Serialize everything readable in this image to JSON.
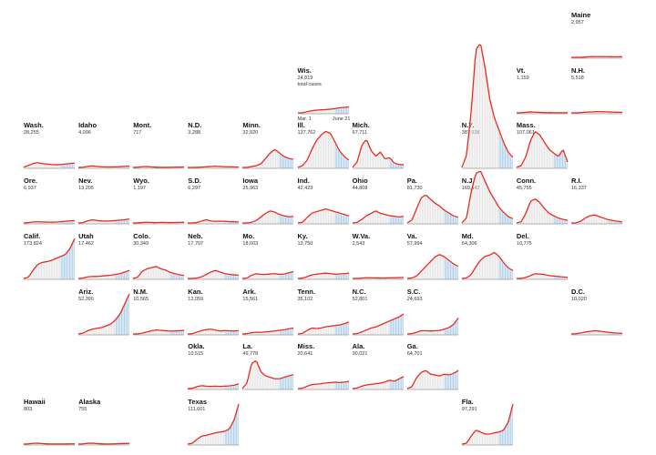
{
  "colors": {
    "line": "#e8281e",
    "bar": "#a9cce8",
    "bar_recent": "#8ec0e4",
    "bar_old": "#e4e4e4",
    "axis": "#9a9a9a"
  },
  "chart_data": {
    "type": "line",
    "subtype": "small-multiples tile map of daily new cases with 7-day average line",
    "x_range": [
      "Mar. 1",
      "June 21"
    ],
    "key_note": "total cases",
    "states": [
      {
        "name": "Maine",
        "total": "2,957",
        "row": 0,
        "col": 10,
        "shape": [
          0,
          0,
          0,
          0.3,
          0.5,
          0.6,
          0.55,
          0.6,
          0.55,
          0.5,
          0.45,
          0.45
        ],
        "peak": 0.03
      },
      {
        "name": "Wis.",
        "total": "24,819",
        "row": 1,
        "col": 5,
        "shape": [
          0,
          0,
          0.2,
          0.35,
          0.45,
          0.5,
          0.55,
          0.6,
          0.7,
          0.85,
          0.9,
          1
        ],
        "peak": 0.15,
        "note": "total cases",
        "ticks": [
          "Mar. 1",
          "June 21"
        ]
      },
      {
        "name": "Vt.",
        "total": "1,159",
        "row": 1,
        "col": 9,
        "shape": [
          0,
          0.1,
          0.6,
          1,
          0.7,
          0.5,
          0.3,
          0.2,
          0.15,
          0.1,
          0.1,
          0.1
        ],
        "peak": 0.02
      },
      {
        "name": "N.H.",
        "total": "5,518",
        "row": 1,
        "col": 10,
        "shape": [
          0,
          0,
          0.2,
          0.5,
          0.7,
          0.9,
          1,
          0.9,
          0.8,
          0.6,
          0.5,
          0.4
        ],
        "peak": 0.03
      },
      {
        "name": "Wash.",
        "total": "28,255",
        "row": 2,
        "col": 0,
        "shape": [
          0.05,
          0.4,
          0.8,
          1,
          0.8,
          0.7,
          0.6,
          0.55,
          0.6,
          0.7,
          0.8,
          0.9
        ],
        "peak": 0.12
      },
      {
        "name": "Idaho",
        "total": "4,006",
        "row": 2,
        "col": 1,
        "shape": [
          0,
          0.1,
          0.6,
          1,
          0.6,
          0.4,
          0.3,
          0.3,
          0.35,
          0.5,
          0.7,
          0.9
        ],
        "peak": 0.04
      },
      {
        "name": "Mont.",
        "total": "717",
        "row": 2,
        "col": 2,
        "shape": [
          0,
          0.2,
          0.8,
          1,
          0.5,
          0.2,
          0.1,
          0.1,
          0.2,
          0.3,
          0.4,
          0.5
        ],
        "peak": 0.01
      },
      {
        "name": "N.D.",
        "total": "3,288",
        "row": 2,
        "col": 3,
        "shape": [
          0,
          0,
          0.1,
          0.3,
          0.5,
          0.8,
          1,
          0.8,
          0.6,
          0.5,
          0.4,
          0.4
        ],
        "peak": 0.03
      },
      {
        "name": "Minn.",
        "total": "32,920",
        "row": 2,
        "col": 4,
        "shape": [
          0,
          0,
          0.05,
          0.1,
          0.2,
          0.5,
          0.8,
          1,
          0.8,
          0.6,
          0.5,
          0.45
        ],
        "peak": 0.45
      },
      {
        "name": "Ill.",
        "total": "137,762",
        "row": 2,
        "col": 5,
        "shape": [
          0,
          0.05,
          0.2,
          0.5,
          0.75,
          0.9,
          1,
          0.95,
          0.7,
          0.45,
          0.3,
          0.2
        ],
        "peak": 0.9
      },
      {
        "name": "Mich.",
        "total": "67,711",
        "row": 2,
        "col": 6,
        "shape": [
          0,
          0.2,
          0.8,
          1,
          0.6,
          0.4,
          0.55,
          0.3,
          0.35,
          0.15,
          0.1,
          0.1
        ],
        "peak": 0.7
      },
      {
        "name": "N.Y.",
        "total": "387,936",
        "row": 2,
        "col": 8,
        "shape": [
          0,
          0.1,
          0.45,
          0.95,
          1,
          0.8,
          0.55,
          0.4,
          0.3,
          0.2,
          0.12,
          0.08
        ],
        "peak": 3.1
      },
      {
        "name": "Mass.",
        "total": "107,061",
        "row": 2,
        "col": 9,
        "shape": [
          0,
          0.05,
          0.3,
          0.75,
          1,
          0.9,
          0.7,
          0.5,
          0.4,
          0.3,
          0.5,
          0.15
        ],
        "peak": 0.9
      },
      {
        "name": "Ore.",
        "total": "6,937",
        "row": 3,
        "col": 0,
        "shape": [
          0,
          0.1,
          0.4,
          0.5,
          0.4,
          0.35,
          0.3,
          0.35,
          0.5,
          0.7,
          0.9,
          1
        ],
        "peak": 0.06
      },
      {
        "name": "Nev.",
        "total": "13,205",
        "row": 3,
        "col": 1,
        "shape": [
          0,
          0.1,
          0.5,
          0.8,
          0.6,
          0.5,
          0.45,
          0.5,
          0.6,
          0.7,
          0.8,
          1
        ],
        "peak": 0.1
      },
      {
        "name": "Wyo.",
        "total": "1,197",
        "row": 3,
        "col": 2,
        "shape": [
          0,
          0.1,
          0.5,
          0.8,
          0.5,
          0.4,
          0.6,
          0.5,
          0.4,
          0.5,
          0.6,
          0.7
        ],
        "peak": 0.02
      },
      {
        "name": "S.D.",
        "total": "6,297",
        "row": 3,
        "col": 3,
        "shape": [
          0,
          0,
          0.1,
          0.6,
          1,
          0.6,
          0.5,
          0.55,
          0.5,
          0.4,
          0.35,
          0.3
        ],
        "peak": 0.08
      },
      {
        "name": "Iowa",
        "total": "25,963",
        "row": 3,
        "col": 4,
        "shape": [
          0,
          0,
          0.05,
          0.2,
          0.5,
          0.8,
          1,
          0.9,
          0.7,
          0.6,
          0.5,
          0.55
        ],
        "peak": 0.3
      },
      {
        "name": "Ind.",
        "total": "42,423",
        "row": 3,
        "col": 5,
        "shape": [
          0,
          0.05,
          0.4,
          0.7,
          0.8,
          0.9,
          1,
          0.9,
          0.8,
          0.7,
          0.6,
          0.5
        ],
        "peak": 0.35
      },
      {
        "name": "Ohio",
        "total": "44,808",
        "row": 3,
        "col": 6,
        "shape": [
          0,
          0.05,
          0.3,
          0.6,
          0.8,
          1,
          0.8,
          0.7,
          0.6,
          0.55,
          0.5,
          0.55
        ],
        "peak": 0.3
      },
      {
        "name": "Pa.",
        "total": "81,730",
        "row": 3,
        "col": 7,
        "shape": [
          0,
          0.1,
          0.5,
          0.9,
          1,
          0.85,
          0.7,
          0.6,
          0.45,
          0.35,
          0.25,
          0.2
        ],
        "peak": 0.7
      },
      {
        "name": "N.J.",
        "total": "169,142",
        "row": 3,
        "col": 8,
        "shape": [
          0,
          0.1,
          0.6,
          0.95,
          1,
          0.8,
          0.6,
          0.45,
          0.3,
          0.2,
          0.12,
          0.08
        ],
        "peak": 1.3
      },
      {
        "name": "Conn.",
        "total": "45,755",
        "row": 3,
        "col": 9,
        "shape": [
          0,
          0.05,
          0.4,
          0.9,
          1,
          0.85,
          0.6,
          0.4,
          0.3,
          0.2,
          0.15,
          0.1
        ],
        "peak": 0.6
      },
      {
        "name": "R.I.",
        "total": "16,337",
        "row": 3,
        "col": 10,
        "shape": [
          0,
          0,
          0.2,
          0.6,
          0.9,
          1,
          0.8,
          0.6,
          0.4,
          0.3,
          0.2,
          0.1
        ],
        "peak": 0.2
      },
      {
        "name": "Calif.",
        "total": "173,824",
        "row": 4,
        "col": 0,
        "shape": [
          0,
          0.03,
          0.2,
          0.35,
          0.4,
          0.42,
          0.45,
          0.5,
          0.55,
          0.6,
          0.75,
          1
        ],
        "peak": 1.0
      },
      {
        "name": "Utah",
        "total": "17,462",
        "row": 4,
        "col": 1,
        "shape": [
          0,
          0.05,
          0.2,
          0.25,
          0.25,
          0.3,
          0.35,
          0.4,
          0.5,
          0.6,
          0.8,
          1
        ],
        "peak": 0.2
      },
      {
        "name": "Colo.",
        "total": "30,349",
        "row": 4,
        "col": 2,
        "shape": [
          0,
          0.1,
          0.6,
          0.8,
          0.9,
          1,
          0.8,
          0.7,
          0.5,
          0.4,
          0.3,
          0.25
        ],
        "peak": 0.3
      },
      {
        "name": "Neb.",
        "total": "17,707",
        "row": 4,
        "col": 3,
        "shape": [
          0,
          0,
          0.05,
          0.2,
          0.5,
          0.8,
          1,
          0.8,
          0.6,
          0.5,
          0.45,
          0.4
        ],
        "peak": 0.2
      },
      {
        "name": "Mo.",
        "total": "18,003",
        "row": 4,
        "col": 4,
        "shape": [
          0,
          0.05,
          0.4,
          0.6,
          0.5,
          0.5,
          0.55,
          0.6,
          0.5,
          0.55,
          0.7,
          0.85
        ],
        "peak": 0.2
      },
      {
        "name": "Ky.",
        "total": "13,750",
        "row": 4,
        "col": 5,
        "shape": [
          0,
          0.05,
          0.3,
          0.6,
          0.7,
          0.8,
          0.9,
          0.8,
          0.7,
          0.75,
          0.8,
          0.9
        ],
        "peak": 0.15
      },
      {
        "name": "W.Va.",
        "total": "2,543",
        "row": 4,
        "col": 6,
        "shape": [
          0,
          0,
          0.3,
          0.6,
          0.5,
          0.45,
          0.4,
          0.4,
          0.5,
          0.6,
          0.7,
          0.8
        ],
        "peak": 0.03
      },
      {
        "name": "Va.",
        "total": "57,994",
        "row": 4,
        "col": 7,
        "shape": [
          0,
          0.02,
          0.1,
          0.3,
          0.5,
          0.7,
          0.9,
          1,
          0.9,
          0.75,
          0.6,
          0.5
        ],
        "peak": 0.6
      },
      {
        "name": "Md.",
        "total": "64,306",
        "row": 4,
        "col": 8,
        "shape": [
          0,
          0.02,
          0.15,
          0.45,
          0.7,
          0.85,
          0.9,
          1,
          0.85,
          0.6,
          0.4,
          0.3
        ],
        "peak": 0.65
      },
      {
        "name": "Del.",
        "total": "10,775",
        "row": 4,
        "col": 9,
        "shape": [
          0,
          0.02,
          0.2,
          0.6,
          1,
          0.9,
          0.8,
          0.6,
          0.5,
          0.4,
          0.3,
          0.25
        ],
        "peak": 0.12
      },
      {
        "name": "Ariz.",
        "total": "52,390",
        "row": 5,
        "col": 1,
        "shape": [
          0,
          0.02,
          0.08,
          0.12,
          0.14,
          0.16,
          0.2,
          0.25,
          0.35,
          0.5,
          0.75,
          1
        ],
        "peak": 1.0
      },
      {
        "name": "N.M.",
        "total": "10,565",
        "row": 5,
        "col": 2,
        "shape": [
          0,
          0.02,
          0.2,
          0.5,
          0.8,
          1,
          0.9,
          0.8,
          0.7,
          0.75,
          0.8,
          0.9
        ],
        "peak": 0.1
      },
      {
        "name": "Kan.",
        "total": "12,059",
        "row": 5,
        "col": 3,
        "shape": [
          0,
          0.05,
          0.4,
          0.7,
          0.9,
          1,
          0.8,
          0.6,
          0.7,
          0.65,
          0.6,
          0.7
        ],
        "peak": 0.12
      },
      {
        "name": "Ark.",
        "total": "15,561",
        "row": 5,
        "col": 4,
        "shape": [
          0,
          0.05,
          0.2,
          0.3,
          0.25,
          0.35,
          0.4,
          0.5,
          0.6,
          0.7,
          0.85,
          1
        ],
        "peak": 0.15
      },
      {
        "name": "Tenn.",
        "total": "35,102",
        "row": 5,
        "col": 5,
        "shape": [
          0,
          0.05,
          0.3,
          0.5,
          0.45,
          0.5,
          0.6,
          0.65,
          0.7,
          0.75,
          0.85,
          1
        ],
        "peak": 0.3
      },
      {
        "name": "N.C.",
        "total": "52,801",
        "row": 5,
        "col": 6,
        "shape": [
          0,
          0.02,
          0.1,
          0.2,
          0.3,
          0.35,
          0.45,
          0.55,
          0.65,
          0.75,
          0.85,
          1
        ],
        "peak": 0.5
      },
      {
        "name": "S.C.",
        "total": "24,693",
        "row": 5,
        "col": 7,
        "shape": [
          0,
          0.02,
          0.1,
          0.2,
          0.2,
          0.18,
          0.2,
          0.22,
          0.3,
          0.4,
          0.6,
          1
        ],
        "peak": 0.4
      },
      {
        "name": "D.C.",
        "total": "10,020",
        "row": 5,
        "col": 10,
        "shape": [
          0,
          0.05,
          0.3,
          0.6,
          0.8,
          1,
          0.9,
          0.7,
          0.5,
          0.35,
          0.25,
          0.2
        ],
        "peak": 0.08
      },
      {
        "name": "Okla.",
        "total": "10,515",
        "row": 6,
        "col": 3,
        "shape": [
          0,
          0.05,
          0.4,
          0.6,
          0.5,
          0.45,
          0.5,
          0.45,
          0.5,
          0.55,
          0.7,
          1
        ],
        "peak": 0.12
      },
      {
        "name": "La.",
        "total": "49,778",
        "row": 6,
        "col": 4,
        "shape": [
          0,
          0.2,
          0.9,
          1,
          0.6,
          0.45,
          0.4,
          0.35,
          0.35,
          0.4,
          0.45,
          0.5
        ],
        "peak": 0.7
      },
      {
        "name": "Miss.",
        "total": "20,641",
        "row": 6,
        "col": 5,
        "shape": [
          0,
          0.05,
          0.3,
          0.5,
          0.55,
          0.6,
          0.7,
          0.75,
          0.8,
          0.75,
          0.8,
          0.9
        ],
        "peak": 0.2
      },
      {
        "name": "Ala.",
        "total": "30,021",
        "row": 6,
        "col": 6,
        "shape": [
          0,
          0.05,
          0.2,
          0.3,
          0.35,
          0.4,
          0.45,
          0.55,
          0.7,
          0.6,
          0.8,
          1
        ],
        "peak": 0.3
      },
      {
        "name": "Ga.",
        "total": "64,701",
        "row": 6,
        "col": 7,
        "shape": [
          0,
          0.1,
          0.6,
          0.9,
          1,
          0.8,
          0.75,
          0.7,
          0.8,
          0.75,
          0.85,
          1
        ],
        "peak": 0.45
      },
      {
        "name": "Hawaii",
        "total": "803",
        "row": 7,
        "col": 0,
        "shape": [
          0,
          0.2,
          0.8,
          1,
          0.5,
          0.2,
          0.1,
          0.1,
          0.1,
          0.15,
          0.2,
          0.3
        ],
        "peak": 0.01
      },
      {
        "name": "Alaska",
        "total": "755",
        "row": 7,
        "col": 1,
        "shape": [
          0,
          0.2,
          0.9,
          1,
          0.5,
          0.2,
          0.1,
          0.15,
          0.3,
          0.5,
          0.6,
          0.8
        ],
        "peak": 0.01
      },
      {
        "name": "Texas",
        "total": "111,601",
        "row": 7,
        "col": 3,
        "shape": [
          0,
          0.02,
          0.12,
          0.2,
          0.22,
          0.25,
          0.28,
          0.3,
          0.32,
          0.38,
          0.6,
          1
        ],
        "peak": 1.0
      },
      {
        "name": "Fla.",
        "total": "97,291",
        "row": 7,
        "col": 8,
        "shape": [
          0,
          0.02,
          0.2,
          0.35,
          0.3,
          0.25,
          0.25,
          0.28,
          0.3,
          0.35,
          0.55,
          1
        ],
        "peak": 1.0
      }
    ]
  }
}
